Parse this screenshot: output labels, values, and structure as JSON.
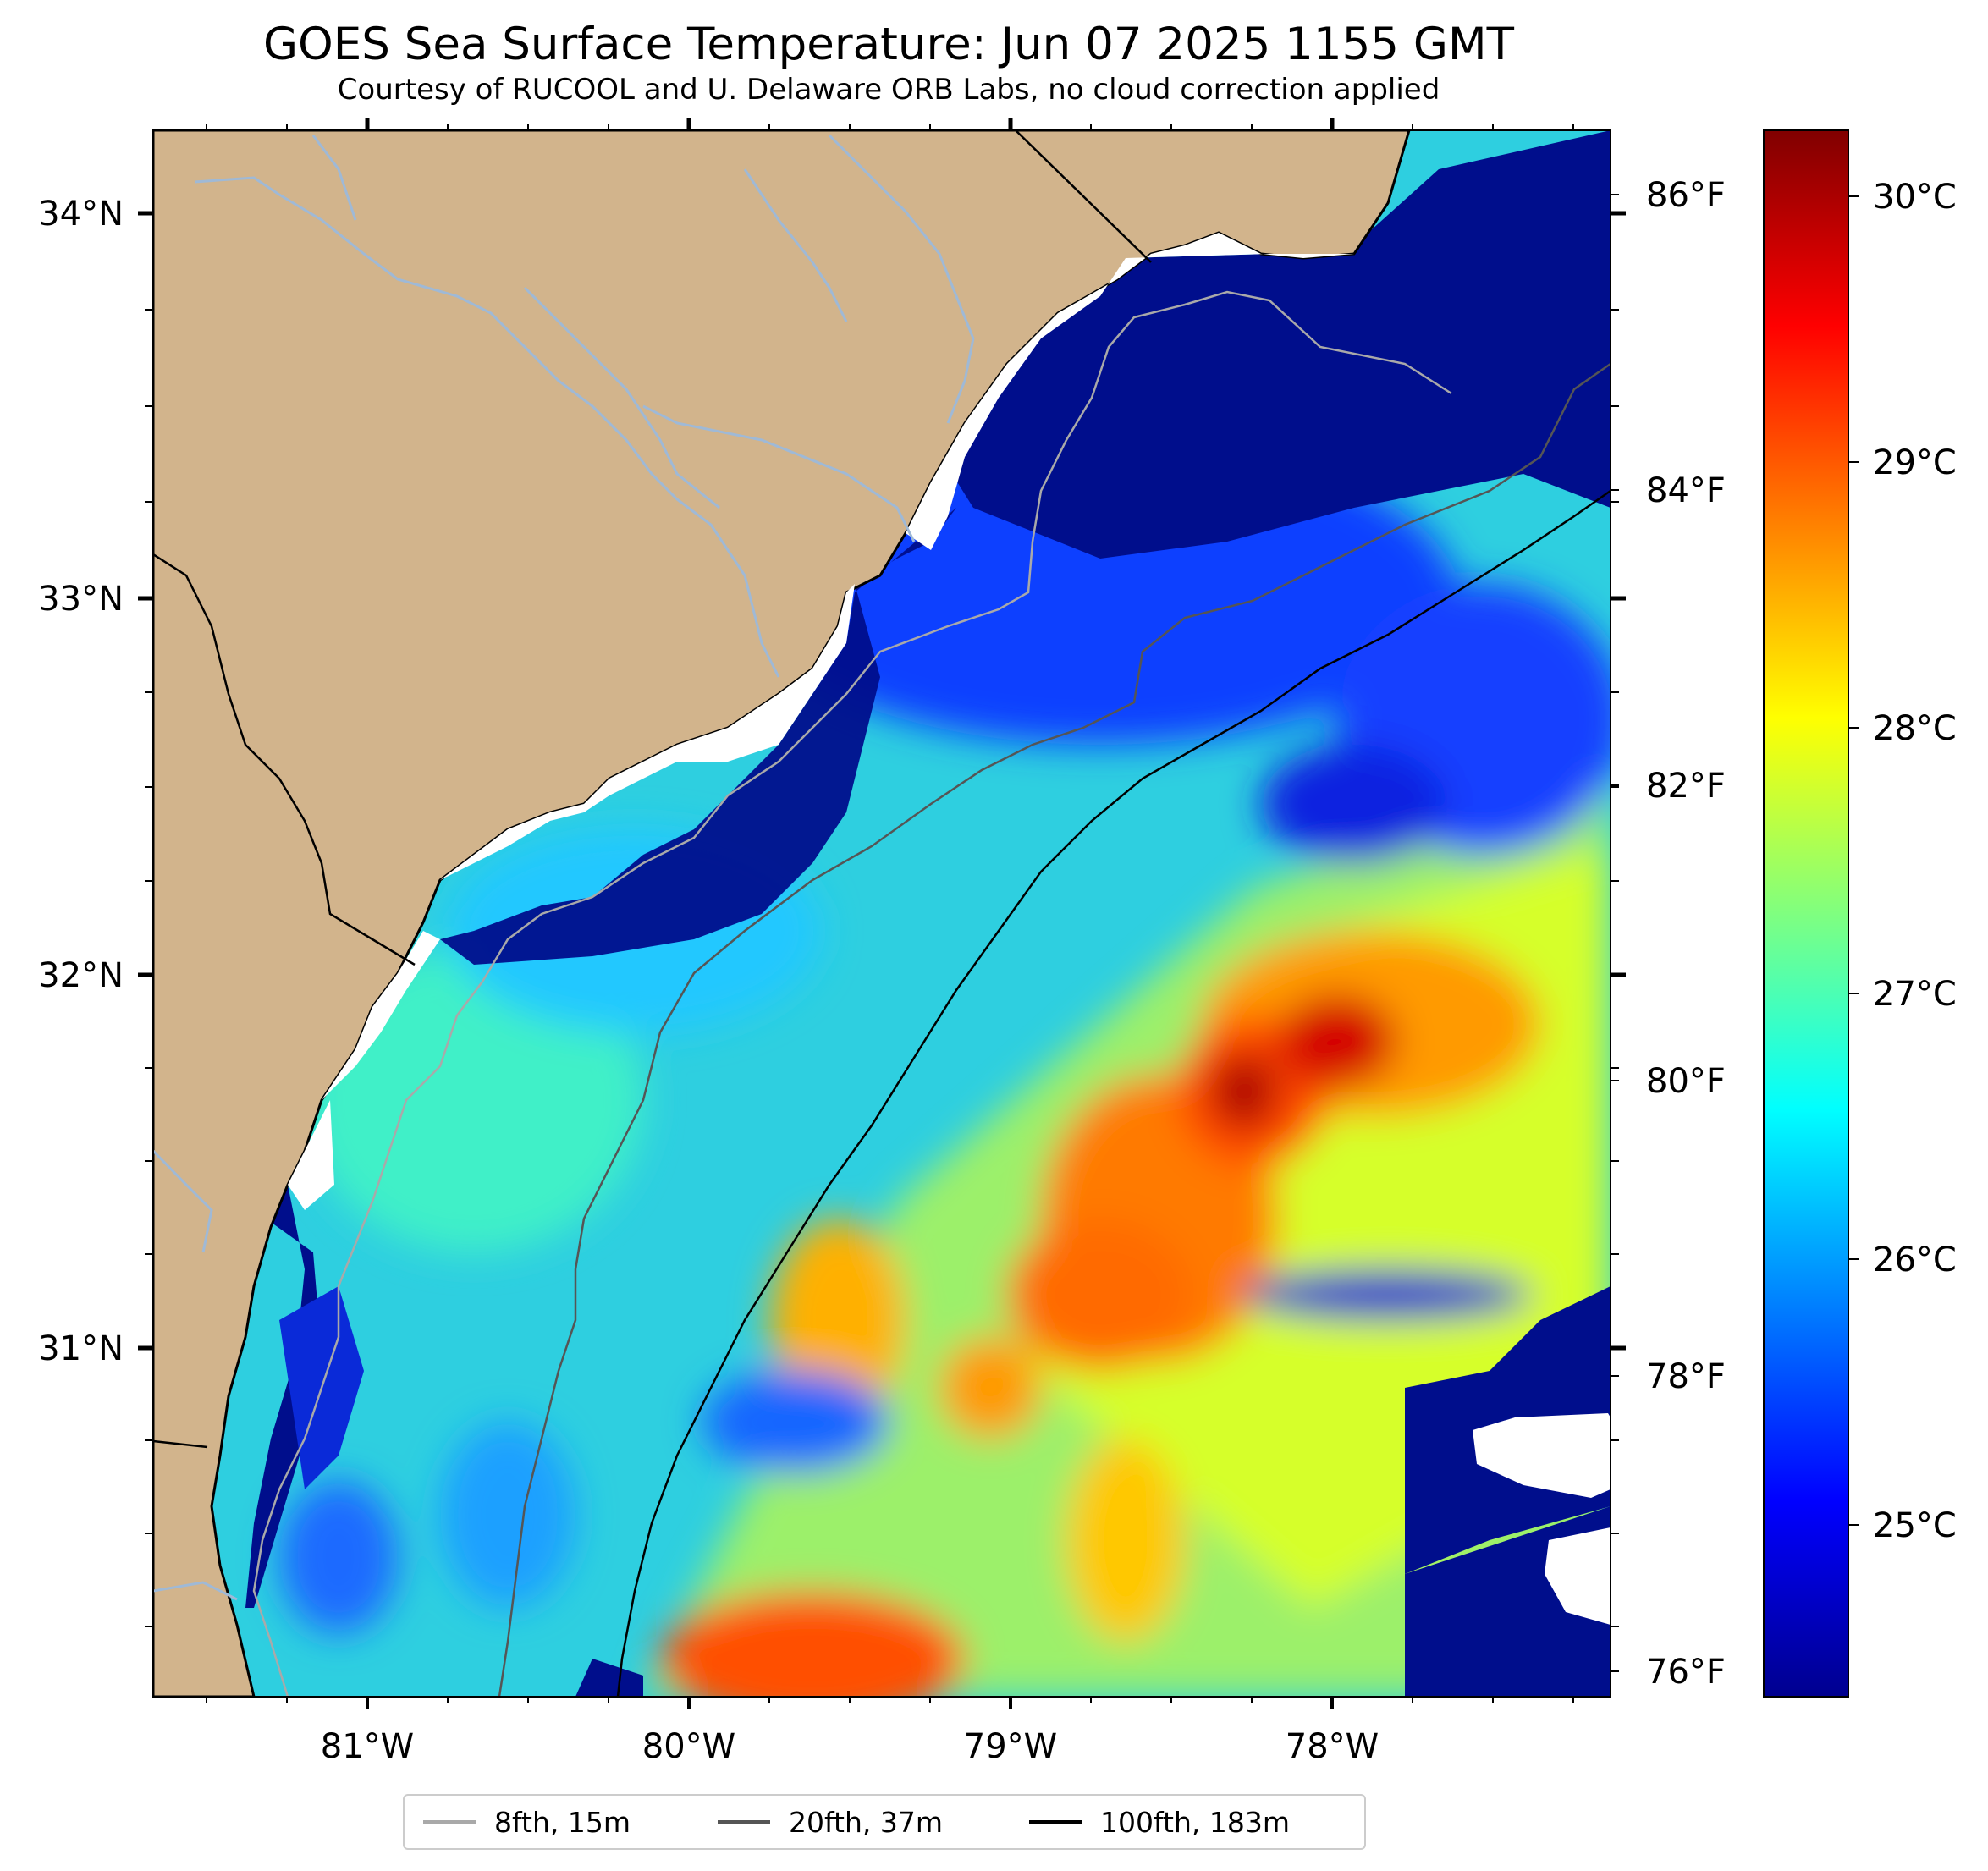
{
  "title": "GOES Sea Surface Temperature: Jun 07 2025 1155 GMT",
  "subtitle": "Courtesy of RUCOOL and U. Delaware ORB Labs, no cloud correction applied",
  "colors": {
    "land": "#d2b48c",
    "river": "#9fb9d6",
    "coast": "#000000",
    "cloud_mask": "#ffffff"
  },
  "map": {
    "lon_range": [
      -81.67,
      -77.12
    ],
    "lat_range": [
      30.09,
      34.22
    ],
    "lon_ticks": [
      "81°W",
      "80°W",
      "79°W",
      "78°W"
    ],
    "lat_ticks": [
      "34°N",
      "33°N",
      "32°N",
      "31°N"
    ]
  },
  "colorbar": {
    "colormap": "jet",
    "celsius_range": [
      24.35,
      30.25
    ],
    "celsius_ticks": [
      "30°C",
      "29°C",
      "28°C",
      "27°C",
      "26°C",
      "25°C"
    ],
    "fahrenheit_ticks": [
      "86°F",
      "84°F",
      "82°F",
      "80°F",
      "78°F",
      "76°F"
    ]
  },
  "legend": [
    {
      "label": "8fth, 15m",
      "color": "#a9a9a9"
    },
    {
      "label": "20fth, 37m",
      "color": "#555555"
    },
    {
      "label": "100fth, 183m",
      "color": "#000000"
    }
  ]
}
